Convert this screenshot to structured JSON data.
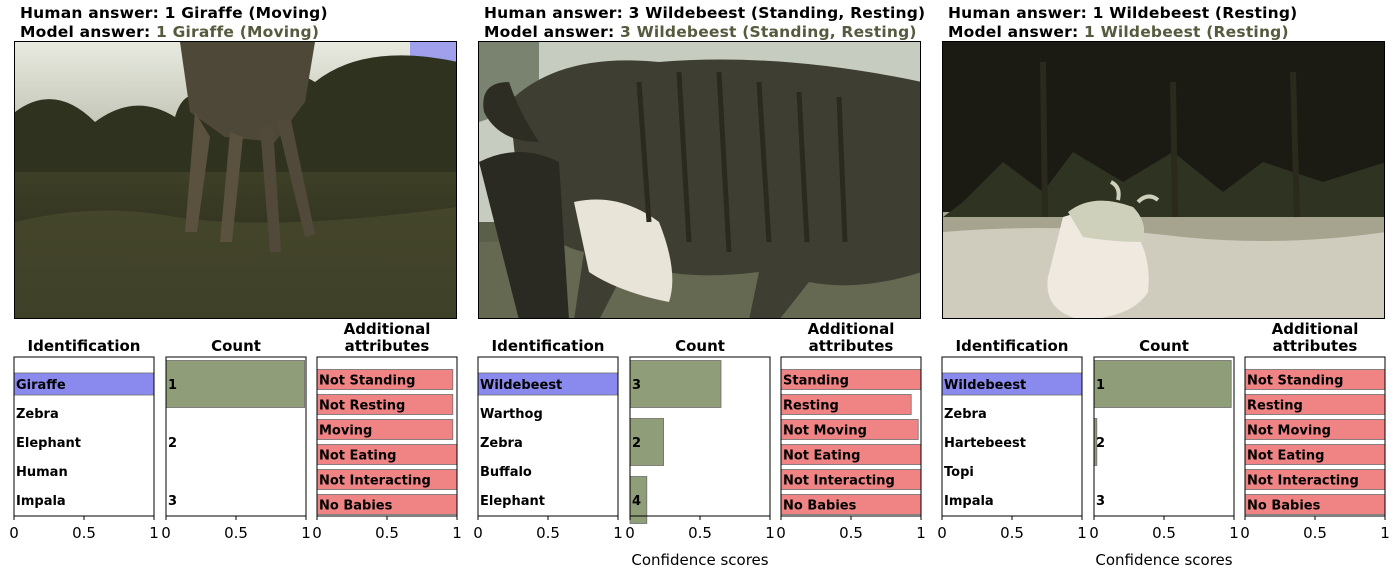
{
  "chart_data": [
    {
      "type": "bar",
      "human_answer_label": "Human answer:",
      "human_answer_value": "1 Giraffe (Moving)",
      "model_answer_label": "Model  answer:",
      "model_answer_value": "1 Giraffe (Moving)",
      "image_description": "camera trap: giraffe legs in grassland at dusk",
      "xlabel": "",
      "identification": {
        "title": "Identification",
        "categories": [
          "Giraffe",
          "Zebra",
          "Elephant",
          "Human",
          "Impala"
        ],
        "values": [
          1.0,
          0.0,
          0.0,
          0.0,
          0.0
        ],
        "highlight_index": 0
      },
      "count": {
        "title": "Count",
        "categories": [
          "1",
          "2",
          "3"
        ],
        "values": [
          0.99,
          0.0,
          0.0
        ]
      },
      "attributes": {
        "title": [
          "Additional",
          "attributes"
        ],
        "categories": [
          "Not Standing",
          "Not Resting",
          "Moving",
          "Not Eating",
          "Not Interacting",
          "No Babies"
        ],
        "values": [
          0.97,
          0.97,
          0.97,
          1.0,
          1.0,
          1.0
        ]
      },
      "xlim": [
        0,
        1
      ],
      "xticks": [
        "0",
        "0.5",
        "1"
      ]
    },
    {
      "type": "bar",
      "human_answer_label": "Human answer:",
      "human_answer_value": "3 Wildebeest (Standing, Resting)",
      "model_answer_label": "Model  answer:",
      "model_answer_value": "3 Wildebeest (Standing, Resting)",
      "image_description": "camera trap: close-up of wildebeest standing",
      "xlabel": "Confidence scores",
      "identification": {
        "title": "Identification",
        "categories": [
          "Wildebeest",
          "Warthog",
          "Zebra",
          "Buffalo",
          "Elephant"
        ],
        "values": [
          1.0,
          0.0,
          0.0,
          0.0,
          0.0
        ],
        "highlight_index": 0
      },
      "count": {
        "title": "Count",
        "categories": [
          "3",
          "2",
          "4"
        ],
        "values": [
          0.65,
          0.24,
          0.12
        ]
      },
      "attributes": {
        "title": [
          "Additional",
          "attributes"
        ],
        "categories": [
          "Standing",
          "Resting",
          "Not Moving",
          "Not Eating",
          "Not Interacting",
          "No Babies"
        ],
        "values": [
          1.0,
          0.93,
          0.98,
          1.0,
          1.0,
          1.0
        ]
      },
      "xlim": [
        0,
        1
      ],
      "xticks": [
        "0",
        "0.5",
        "1"
      ]
    },
    {
      "type": "bar",
      "human_answer_label": "Human answer:",
      "human_answer_value": "1 Wildebeest (Resting)",
      "model_answer_label": "Model  answer:",
      "model_answer_value": "1 Wildebeest (Resting)",
      "image_description": "camera trap: night image of wildebeest lying in grass",
      "xlabel": "Confidence scores",
      "identification": {
        "title": "Identification",
        "categories": [
          "Wildebeest",
          "Zebra",
          "Hartebeest",
          "Topi",
          "Impala"
        ],
        "values": [
          1.0,
          0.0,
          0.0,
          0.0,
          0.0
        ],
        "highlight_index": 0
      },
      "count": {
        "title": "Count",
        "categories": [
          "1",
          "2",
          "3"
        ],
        "values": [
          0.98,
          0.02,
          0.0
        ]
      },
      "attributes": {
        "title": [
          "Additional",
          "attributes"
        ],
        "categories": [
          "Not Standing",
          "Resting",
          "Not Moving",
          "Not Eating",
          "Not Interacting",
          "No Babies"
        ],
        "values": [
          1.0,
          1.0,
          1.0,
          1.0,
          1.0,
          1.0
        ]
      },
      "xlim": [
        0,
        1
      ],
      "xticks": [
        "0",
        "0.5",
        "1"
      ]
    }
  ],
  "colors": {
    "identification_bar": "#8a8aee",
    "count_bar": "#909d79",
    "attribute_bar": "#f08484",
    "model_answer_value": "#555b3e"
  }
}
